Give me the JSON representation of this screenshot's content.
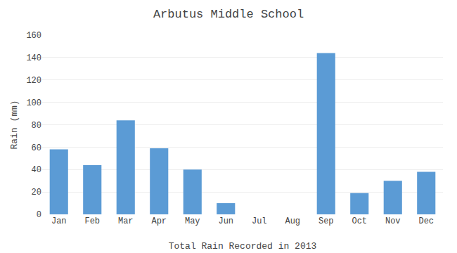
{
  "chart_data": {
    "type": "bar",
    "title": "Arbutus Middle School",
    "xlabel": "Total Rain Recorded in 2013",
    "ylabel": "Rain (mm)",
    "categories": [
      "Jan",
      "Feb",
      "Mar",
      "Apr",
      "May",
      "Jun",
      "Jul",
      "Aug",
      "Sep",
      "Oct",
      "Nov",
      "Dec"
    ],
    "values": [
      58,
      44,
      84,
      59,
      40,
      10,
      0,
      0,
      144,
      19,
      30,
      38
    ],
    "color": "#5b9bd5",
    "ylim": [
      0,
      160
    ],
    "yticks": [
      0,
      20,
      40,
      60,
      80,
      100,
      120,
      140,
      160
    ],
    "grid": true
  }
}
